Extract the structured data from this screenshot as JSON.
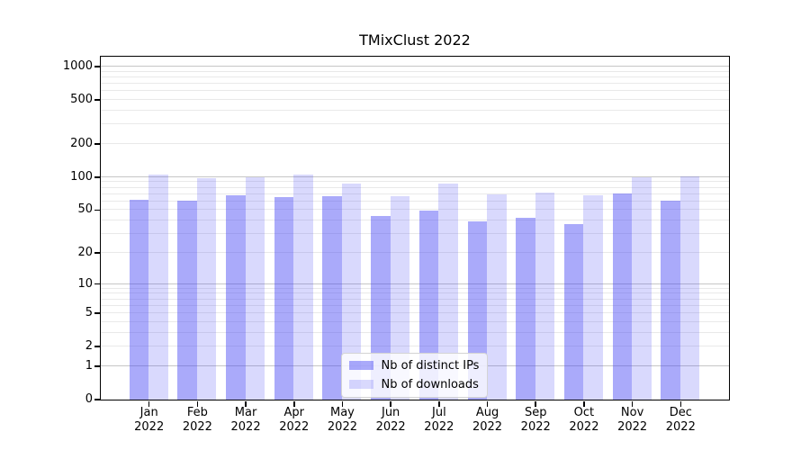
{
  "chart_data": {
    "type": "bar",
    "title": "TMixClust 2022",
    "categories": [
      "Jan",
      "Feb",
      "Mar",
      "Apr",
      "May",
      "Jun",
      "Jul",
      "Aug",
      "Sep",
      "Oct",
      "Nov",
      "Dec"
    ],
    "x_tick_second_line": "2022",
    "series": [
      {
        "name": "Nb of distinct IPs",
        "color": "rgba(66, 66, 244, 0.45)",
        "values": [
          62,
          61,
          68,
          65,
          67,
          44,
          49,
          39,
          42,
          37,
          71,
          61
        ]
      },
      {
        "name": "Nb of downloads",
        "color": "rgba(66, 66, 244, 0.20)",
        "values": [
          104,
          97,
          99,
          104,
          87,
          67,
          86,
          69,
          72,
          68,
          98,
          100
        ]
      }
    ],
    "yscale": "log1p",
    "ylim": [
      0,
      1230
    ],
    "yticks": [
      0,
      1,
      2,
      5,
      10,
      20,
      50,
      100,
      200,
      500,
      1000
    ],
    "ytick_labels": [
      "0",
      "1",
      "2",
      "5",
      "10",
      "20",
      "50",
      "100",
      "200",
      "500",
      "1000"
    ],
    "major_gridlines": [
      1,
      10,
      100,
      1000
    ],
    "minor_gridlines": [
      2,
      3,
      4,
      5,
      6,
      7,
      8,
      9,
      20,
      30,
      40,
      50,
      60,
      70,
      80,
      90,
      200,
      300,
      400,
      500,
      600,
      700,
      800,
      900
    ],
    "grid": "on",
    "legend_position": "lower center",
    "colors": {
      "major_grid": "#c6c6c6",
      "minor_grid": "#e9e9e9",
      "spine": "#000000",
      "background": "#ffffff"
    }
  }
}
